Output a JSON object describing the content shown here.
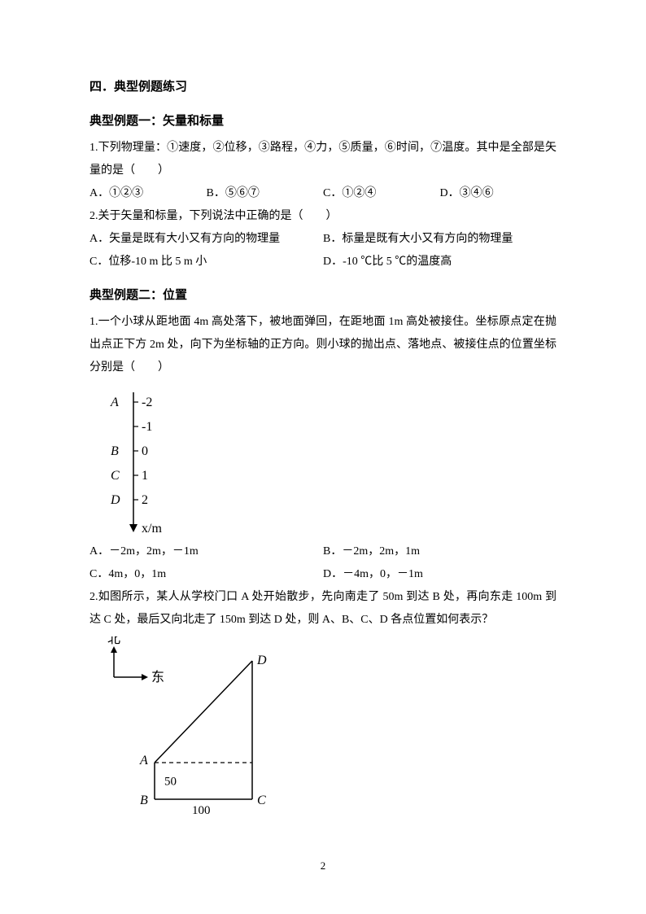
{
  "section_title": "四．典型例题练习",
  "topic1": {
    "title": "典型例题一：矢量和标量",
    "q1": {
      "stem": "1.下列物理量：①速度，②位移，③路程，④力，⑤质量，⑥时间，⑦温度。其中是全部是矢量的是（　　）",
      "A": "A．①②③",
      "B": "B．⑤⑥⑦",
      "C": "C．①②④",
      "D": "D．③④⑥"
    },
    "q2": {
      "stem": "2.关于矢量和标量，下列说法中正确的是（　　）",
      "A": "A．矢量是既有大小又有方向的物理量",
      "B": "B．标量是既有大小又有方向的物理量",
      "C": "C．位移-10 m 比 5 m 小",
      "D": "D．-10 ℃比 5 ℃的温度高"
    }
  },
  "topic2": {
    "title": "典型例题二：位置",
    "q1": {
      "stem": "1.一个小球从距地面 4m 高处落下，被地面弹回，在距地面 1m 高处被接住。坐标原点定在抛出点正下方 2m 处，向下为坐标轴的正方向。则小球的抛出点、落地点、被接住点的位置坐标分别是（　　）",
      "A": "A．－2m，2m，－1m",
      "B": "B．－2m，2m，1m",
      "C": "C．4m，0，1m",
      "D": "D．－4m，0，－1m",
      "axis_diagram": {
        "labels": [
          "A",
          "B",
          "C",
          "D"
        ],
        "ticks": [
          "-2",
          "-1",
          "0",
          "1",
          "2"
        ],
        "axis_label": "x/m",
        "colors": {
          "line": "#000000",
          "text": "#000000",
          "tick": "#000000"
        },
        "tick_len": 6,
        "font_size": 16
      }
    },
    "q2": {
      "stem": "2.如图所示，某人从学校门口 A 处开始散步，先向南走了 50m 到达 B 处，再向东走 100m 到达 C 处，最后又向北走了 150m 到达 D 处，则 A、B、C、D 各点位置如何表示？",
      "diagram": {
        "labels": {
          "north": "北",
          "east": "东",
          "A": "A",
          "B": "B",
          "C": "C",
          "D": "D",
          "d50": "50",
          "d100": "100"
        },
        "colors": {
          "line": "#000000",
          "text": "#000000",
          "dash": "#000000"
        },
        "font_size": 16
      }
    }
  },
  "page_number": "2"
}
